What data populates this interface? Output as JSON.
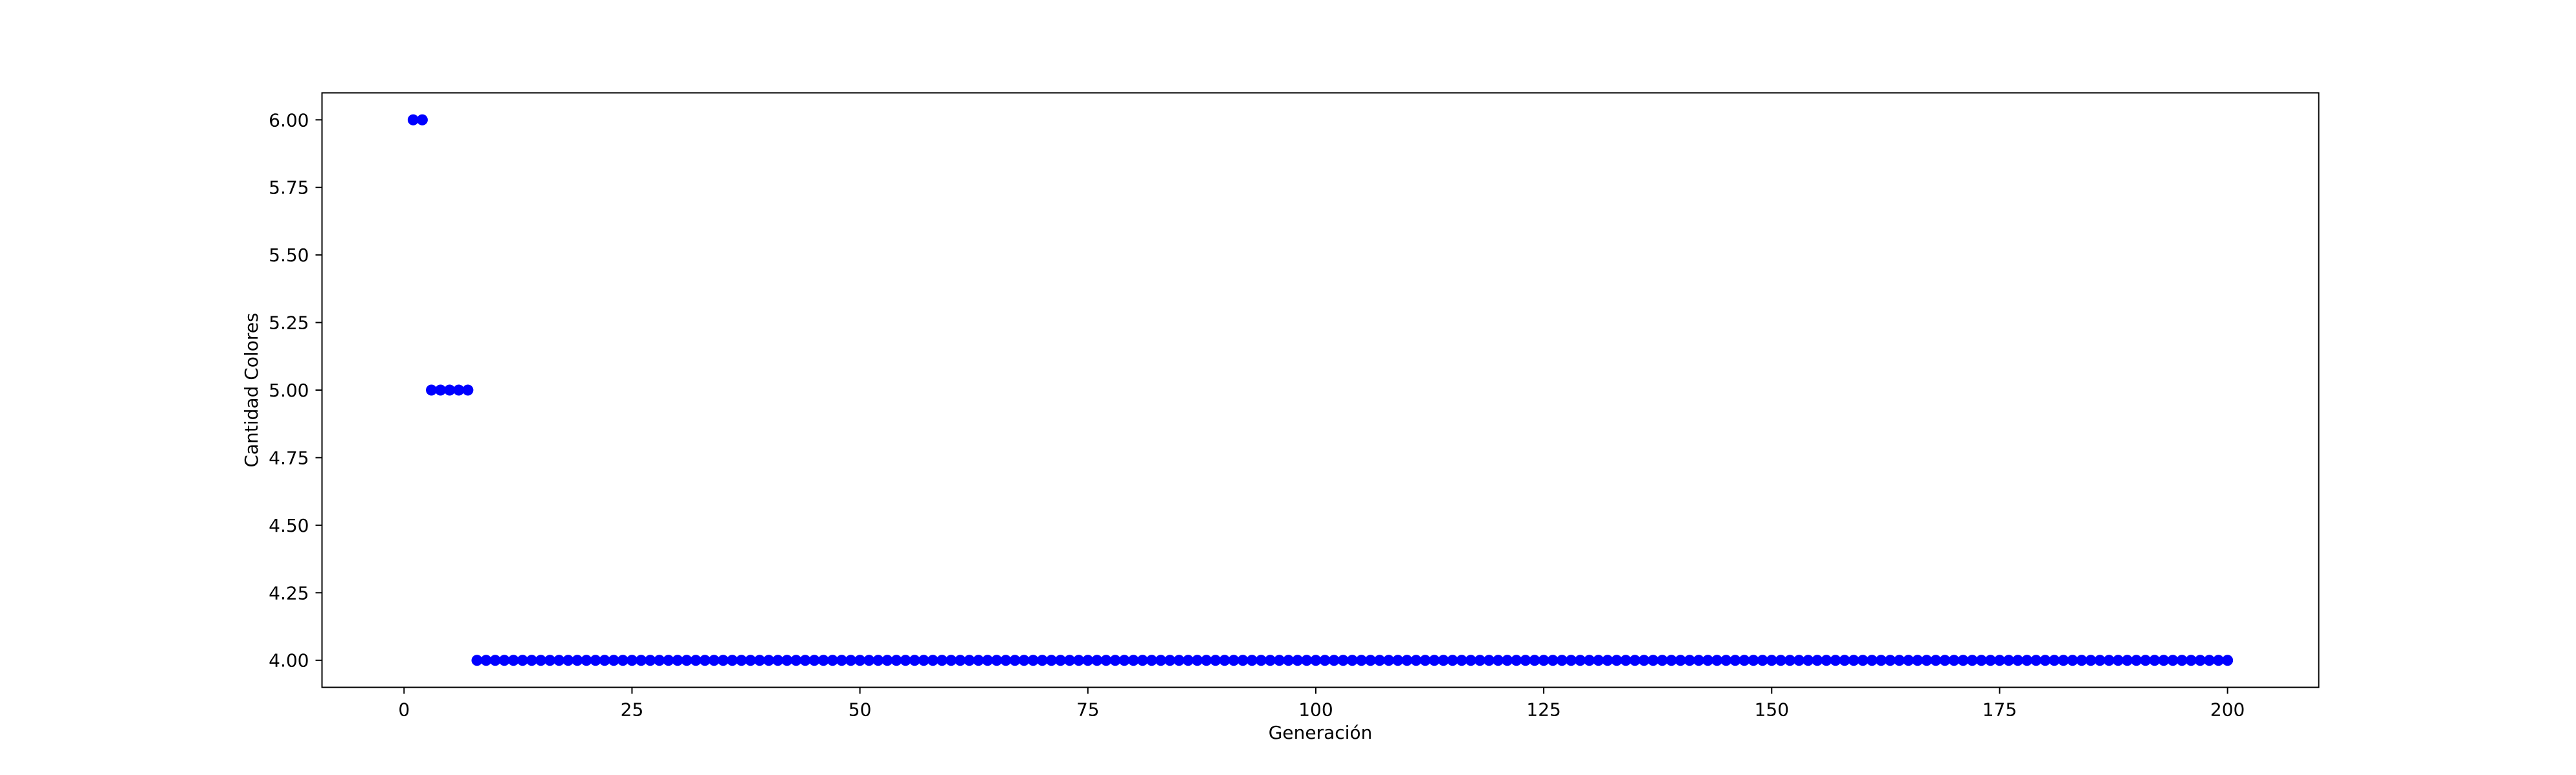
{
  "chart_data": {
    "type": "scatter",
    "xlabel": "Generación",
    "ylabel": "Cantidad Colores",
    "xlim": [
      -9,
      210
    ],
    "ylim": [
      3.9,
      6.1
    ],
    "grid": false,
    "marker_color": "#0000ff",
    "x_ticks": [
      0,
      25,
      50,
      75,
      100,
      125,
      150,
      175,
      200
    ],
    "x_tick_labels": [
      "0",
      "25",
      "50",
      "75",
      "100",
      "125",
      "150",
      "175",
      "200"
    ],
    "y_ticks": [
      4.0,
      4.25,
      4.5,
      4.75,
      5.0,
      5.25,
      5.5,
      5.75,
      6.0
    ],
    "y_tick_labels": [
      "4.00",
      "4.25",
      "4.50",
      "4.75",
      "5.00",
      "5.25",
      "5.50",
      "5.75",
      "6.00"
    ],
    "series": [
      {
        "x": [
          1,
          2,
          3,
          4,
          5,
          6,
          7,
          8,
          9,
          10,
          11,
          12,
          13,
          14,
          15,
          16,
          17,
          18,
          19,
          20,
          21,
          22,
          23,
          24,
          25,
          26,
          27,
          28,
          29,
          30,
          31,
          32,
          33,
          34,
          35,
          36,
          37,
          38,
          39,
          40,
          41,
          42,
          43,
          44,
          45,
          46,
          47,
          48,
          49,
          50,
          51,
          52,
          53,
          54,
          55,
          56,
          57,
          58,
          59,
          60,
          61,
          62,
          63,
          64,
          65,
          66,
          67,
          68,
          69,
          70,
          71,
          72,
          73,
          74,
          75,
          76,
          77,
          78,
          79,
          80,
          81,
          82,
          83,
          84,
          85,
          86,
          87,
          88,
          89,
          90,
          91,
          92,
          93,
          94,
          95,
          96,
          97,
          98,
          99,
          100,
          101,
          102,
          103,
          104,
          105,
          106,
          107,
          108,
          109,
          110,
          111,
          112,
          113,
          114,
          115,
          116,
          117,
          118,
          119,
          120,
          121,
          122,
          123,
          124,
          125,
          126,
          127,
          128,
          129,
          130,
          131,
          132,
          133,
          134,
          135,
          136,
          137,
          138,
          139,
          140,
          141,
          142,
          143,
          144,
          145,
          146,
          147,
          148,
          149,
          150,
          151,
          152,
          153,
          154,
          155,
          156,
          157,
          158,
          159,
          160,
          161,
          162,
          163,
          164,
          165,
          166,
          167,
          168,
          169,
          170,
          171,
          172,
          173,
          174,
          175,
          176,
          177,
          178,
          179,
          180,
          181,
          182,
          183,
          184,
          185,
          186,
          187,
          188,
          189,
          190,
          191,
          192,
          193,
          194,
          195,
          196,
          197,
          198,
          199,
          200
        ],
        "y": [
          6,
          6,
          5,
          5,
          5,
          5,
          5,
          4,
          4,
          4,
          4,
          4,
          4,
          4,
          4,
          4,
          4,
          4,
          4,
          4,
          4,
          4,
          4,
          4,
          4,
          4,
          4,
          4,
          4,
          4,
          4,
          4,
          4,
          4,
          4,
          4,
          4,
          4,
          4,
          4,
          4,
          4,
          4,
          4,
          4,
          4,
          4,
          4,
          4,
          4,
          4,
          4,
          4,
          4,
          4,
          4,
          4,
          4,
          4,
          4,
          4,
          4,
          4,
          4,
          4,
          4,
          4,
          4,
          4,
          4,
          4,
          4,
          4,
          4,
          4,
          4,
          4,
          4,
          4,
          4,
          4,
          4,
          4,
          4,
          4,
          4,
          4,
          4,
          4,
          4,
          4,
          4,
          4,
          4,
          4,
          4,
          4,
          4,
          4,
          4,
          4,
          4,
          4,
          4,
          4,
          4,
          4,
          4,
          4,
          4,
          4,
          4,
          4,
          4,
          4,
          4,
          4,
          4,
          4,
          4,
          4,
          4,
          4,
          4,
          4,
          4,
          4,
          4,
          4,
          4,
          4,
          4,
          4,
          4,
          4,
          4,
          4,
          4,
          4,
          4,
          4,
          4,
          4,
          4,
          4,
          4,
          4,
          4,
          4,
          4,
          4,
          4,
          4,
          4,
          4,
          4,
          4,
          4,
          4,
          4,
          4,
          4,
          4,
          4,
          4,
          4,
          4,
          4,
          4,
          4,
          4,
          4,
          4,
          4,
          4,
          4,
          4,
          4,
          4,
          4,
          4,
          4,
          4,
          4,
          4,
          4,
          4,
          4,
          4,
          4,
          4,
          4,
          4,
          4,
          4,
          4,
          4,
          4,
          4,
          4
        ]
      }
    ]
  }
}
